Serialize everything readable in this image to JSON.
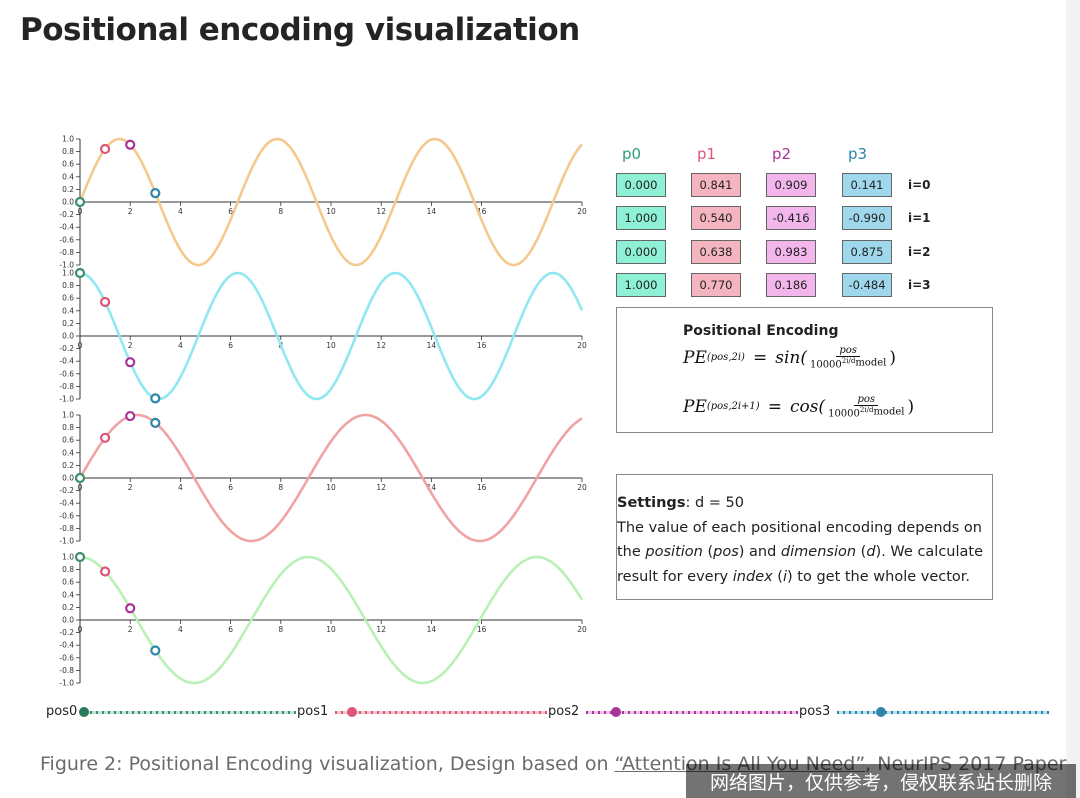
{
  "page": {
    "title": "Positional encoding visualization"
  },
  "colors": {
    "sin0": "#f5c98d",
    "cos0": "#8fe8f0",
    "sin1": "#f0a3a3",
    "cos1": "#b8f0b5",
    "p0": "#3d8f6b",
    "p1": "#dd5577",
    "p2": "#a8349a",
    "p3": "#2f86a8",
    "p0_fill": "#8ef0d4",
    "p1_fill": "#f4b5c0",
    "p2_fill": "#f2b6ec",
    "p3_fill": "#9fd8ec"
  },
  "chart_data": {
    "type": "line",
    "x_range": [
      0,
      20
    ],
    "y_range": [
      -1,
      1
    ],
    "x_ticks": [
      "0",
      "2",
      "4",
      "6",
      "8",
      "10",
      "12",
      "14",
      "16",
      "20"
    ],
    "y_ticks": [
      "1.0",
      "0.8",
      "0.6",
      "0.4",
      "0.2",
      "0.0",
      "-0.2",
      "-0.4",
      "-0.6",
      "-0.8",
      "-1.0"
    ],
    "series": [
      {
        "name": "i=0",
        "fn": "sin",
        "period": 6.283,
        "color": "#f5c98d",
        "points": [
          {
            "pos": 0,
            "y": 0.0
          },
          {
            "pos": 1,
            "y": 0.841
          },
          {
            "pos": 2,
            "y": 0.909
          },
          {
            "pos": 3,
            "y": 0.141
          }
        ]
      },
      {
        "name": "i=1",
        "fn": "cos",
        "period": 6.283,
        "color": "#8fe8f0",
        "points": [
          {
            "pos": 0,
            "y": 1.0
          },
          {
            "pos": 1,
            "y": 0.54
          },
          {
            "pos": 2,
            "y": -0.416
          },
          {
            "pos": 3,
            "y": -0.99
          }
        ]
      },
      {
        "name": "i=2",
        "fn": "sin",
        "period": 9.1,
        "color": "#f0a3a3",
        "points": [
          {
            "pos": 0,
            "y": 0.0
          },
          {
            "pos": 1,
            "y": 0.638
          },
          {
            "pos": 2,
            "y": 0.983
          },
          {
            "pos": 3,
            "y": 0.875
          }
        ]
      },
      {
        "name": "i=3",
        "fn": "cos",
        "period": 9.1,
        "color": "#b8f0b5",
        "points": [
          {
            "pos": 0,
            "y": 1.0
          },
          {
            "pos": 1,
            "y": 0.77
          },
          {
            "pos": 2,
            "y": 0.186
          },
          {
            "pos": 3,
            "y": -0.484
          }
        ]
      }
    ]
  },
  "table": {
    "headers": [
      "p0",
      "p1",
      "p2",
      "p3"
    ],
    "rows": [
      {
        "label": "i=0",
        "values": [
          "0.000",
          "0.841",
          "0.909",
          "0.141"
        ]
      },
      {
        "label": "i=1",
        "values": [
          "1.000",
          "0.540",
          "-0.416",
          "-0.990"
        ]
      },
      {
        "label": "i=2",
        "values": [
          "0.000",
          "0.638",
          "0.983",
          "0.875"
        ]
      },
      {
        "label": "i=3",
        "values": [
          "1.000",
          "0.770",
          "0.186",
          "-0.484"
        ]
      }
    ]
  },
  "formula": {
    "title": "Positional Encoding",
    "pe": "PE",
    "sub_even": "(pos,2i)",
    "sub_odd": "(pos,2i+1)",
    "eq": "=",
    "sin": "sin(",
    "cos": "cos(",
    "close": ")",
    "num": "pos",
    "den_base": "10000",
    "den_exp": "2i/d",
    "den_exp_sub": "model"
  },
  "settings": {
    "label": "Settings",
    "value": ": d = 50",
    "t1": "The value of each positional encoding depends on",
    "t2": "the ",
    "t3": "position",
    "t4": " (",
    "t5": "pos",
    "t6": ") and ",
    "t7": "dimension",
    "t8": " (",
    "t9": "d",
    "t10": "). We calculate",
    "t11": "result for every ",
    "t12": "index",
    "t13": " (",
    "t14": "i",
    "t15": ") to get the whole vector."
  },
  "sliders": [
    {
      "label": "pos0",
      "value": 0,
      "max": 20
    },
    {
      "label": "pos1",
      "value": 1,
      "max": 20
    },
    {
      "label": "pos2",
      "value": 2,
      "max": 20
    },
    {
      "label": "pos3",
      "value": 3,
      "max": 20
    }
  ],
  "caption": {
    "prefix": "Figure 2: Positional Encoding visualization, Design based on ",
    "link": "“Attention Is All You Need”",
    "suffix": ", NeurIPS 2017 Paper"
  },
  "watermark": "网络图片，仅供参考，侵权联系站长删除"
}
